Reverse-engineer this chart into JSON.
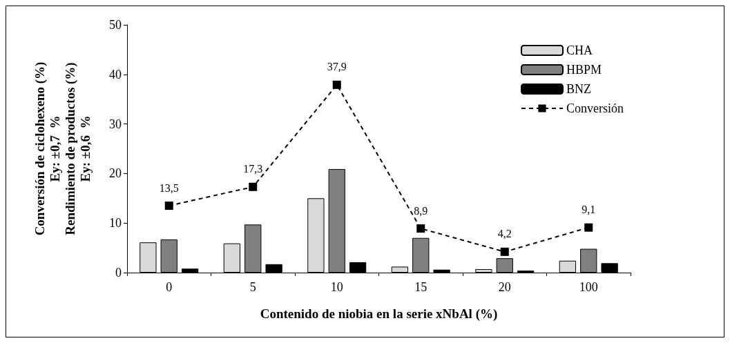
{
  "chart_data": {
    "type": "bar",
    "xlabel": "Contenido de niobia en la serie xNbAl (%)",
    "ylabel": "Conversión de ciclohexeno (%)\nEy: ±0,7  %\nRendimiento de productos (%)\nEy: ±0,6  %",
    "categories": [
      "0",
      "5",
      "10",
      "15",
      "20",
      "100"
    ],
    "series": [
      {
        "name": "CHA",
        "color": "#d9d9d9",
        "values": [
          6.1,
          5.9,
          15.0,
          1.2,
          0.7,
          2.4
        ]
      },
      {
        "name": "HBPM",
        "color": "#808080",
        "values": [
          6.7,
          9.7,
          20.9,
          7.0,
          2.9,
          4.8
        ]
      },
      {
        "name": "BNZ",
        "color": "#000000",
        "values": [
          0.8,
          1.7,
          2.1,
          0.6,
          0.4,
          1.9
        ]
      },
      {
        "name": "Conversión",
        "type": "line",
        "color": "#000000",
        "marker": "square",
        "line_style": "dashed",
        "values": [
          13.5,
          17.3,
          37.9,
          8.9,
          4.2,
          9.1
        ],
        "value_labels": [
          "13,5",
          "17,3",
          "37,9",
          "8,9",
          "4,2",
          "9,1"
        ]
      }
    ],
    "ylim": [
      0,
      50
    ],
    "yticks": [
      0,
      10,
      20,
      30,
      40,
      50
    ],
    "grid": false,
    "legend": "top right"
  }
}
